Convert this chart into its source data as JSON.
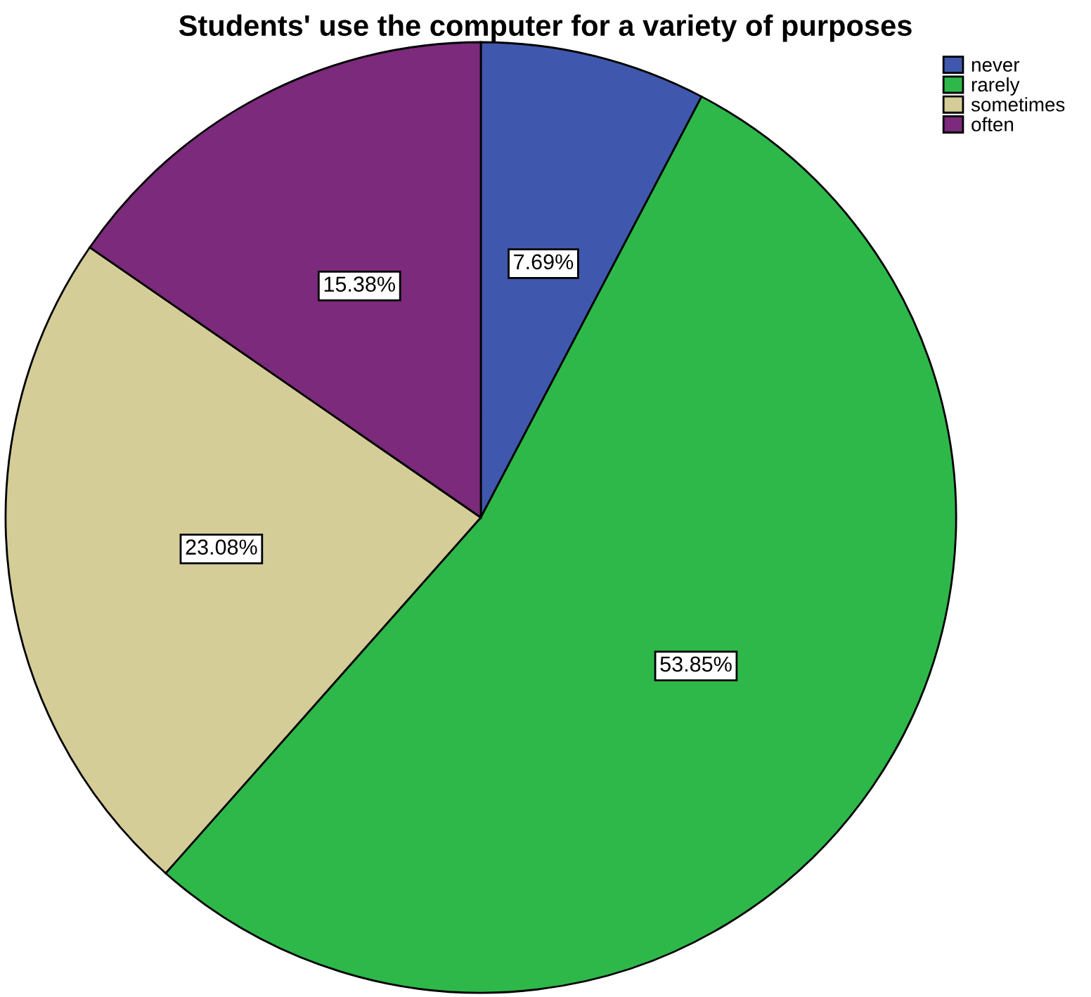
{
  "chart_data": {
    "type": "pie",
    "title": "Students' use the computer for a variety of purposes",
    "categories": [
      "never",
      "rarely",
      "sometimes",
      "often"
    ],
    "values": [
      7.69,
      53.85,
      23.08,
      15.38
    ],
    "colors": [
      "#3f58ad",
      "#2eb84a",
      "#d5cd98",
      "#7b2a7c"
    ],
    "value_labels": [
      "7.69%",
      "53.85%",
      "23.08%",
      "15.38%"
    ],
    "legend": "top right"
  }
}
